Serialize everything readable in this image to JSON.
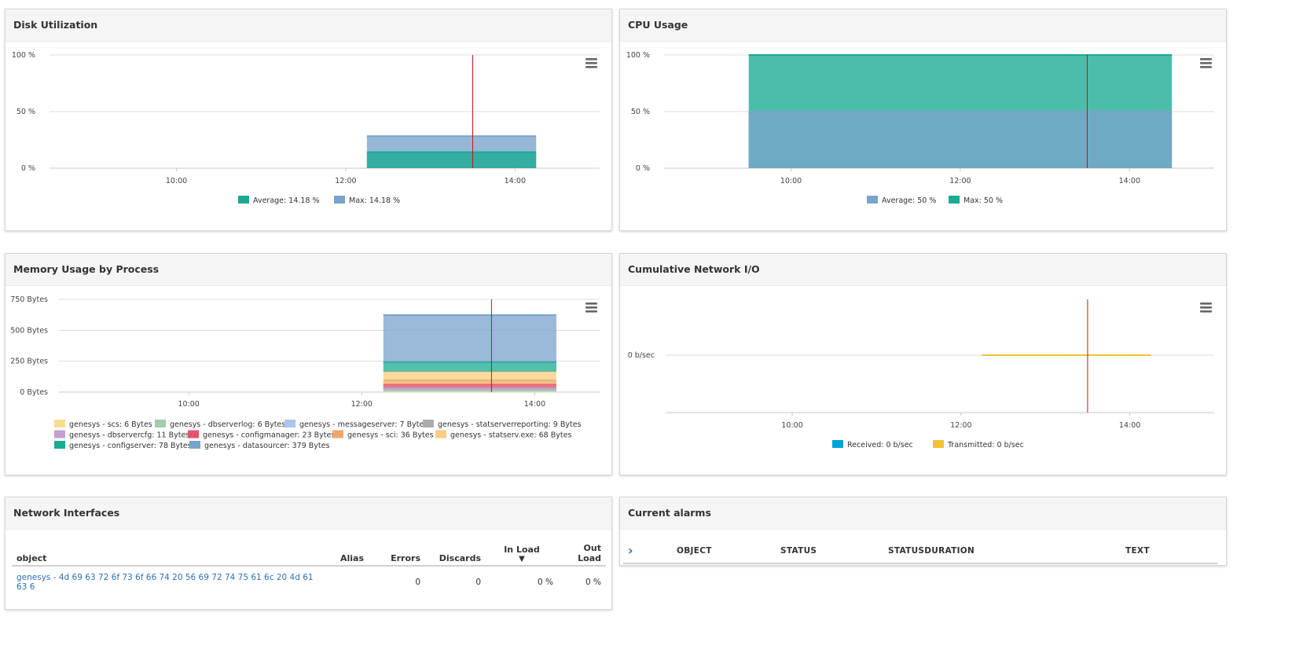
{
  "colors": {
    "teal": "#1aab92",
    "teal_fill": "#3fb8a3",
    "blue_fill": "#96b7d4",
    "blue_line": "#6f96bf",
    "cursor": "#cc1111",
    "grid": "#dcdcdc",
    "cyan": "#00a3d9",
    "yellow": "#f1c232",
    "link": "#2a70b8"
  },
  "panels": {
    "disk": {
      "title": "Disk Utilization"
    },
    "cpu": {
      "title": "CPU Usage"
    },
    "memory": {
      "title": "Memory Usage by Process"
    },
    "network_io": {
      "title": "Cumulative Network I/O"
    },
    "interfaces": {
      "title": "Network Interfaces"
    },
    "alarms": {
      "title": "Current alarms"
    }
  },
  "chart_data": [
    {
      "id": "disk",
      "type": "area",
      "title": "Disk Utilization",
      "x_ticks": [
        "10:00",
        "12:00",
        "14:00"
      ],
      "y_ticks": [
        "0 %",
        "50 %",
        "100 %"
      ],
      "ylim": [
        0,
        100
      ],
      "x_range_hours": [
        8.5,
        15.0
      ],
      "cursor_at": 13.5,
      "series": [
        {
          "name": "Max",
          "legend": "Max: 14.18 %",
          "color": "#7aa3cc",
          "start": 12.25,
          "end": 14.25,
          "value": 28.3
        },
        {
          "name": "Average",
          "legend": "Average: 14.18 %",
          "color": "#1aab92",
          "start": 12.25,
          "end": 14.25,
          "value": 14.18
        }
      ]
    },
    {
      "id": "cpu",
      "type": "area",
      "title": "CPU Usage",
      "x_ticks": [
        "10:00",
        "12:00",
        "14:00"
      ],
      "y_ticks": [
        "0 %",
        "50 %",
        "100 %"
      ],
      "ylim": [
        0,
        100
      ],
      "x_range_hours": [
        8.5,
        15.0
      ],
      "cursor_at": 13.5,
      "series": [
        {
          "name": "Average",
          "legend": "Average: 50 %",
          "color": "#7aa3cc",
          "start": 9.5,
          "end": 14.5,
          "value": 50
        },
        {
          "name": "Max",
          "legend": "Max: 50 %",
          "color": "#1aab92",
          "start": 9.5,
          "end": 14.5,
          "value": 100
        }
      ]
    },
    {
      "id": "memory",
      "type": "area",
      "title": "Memory Usage by Process",
      "x_ticks": [
        "10:00",
        "12:00",
        "14:00"
      ],
      "y_ticks": [
        "0 Bytes",
        "250 Bytes",
        "500 Bytes",
        "750 Bytes"
      ],
      "ylim": [
        0,
        750
      ],
      "x_range_hours": [
        8.5,
        14.75
      ],
      "cursor_at": 13.5,
      "series": [
        {
          "name": "genesys - scs",
          "legend": "genesys - scs: 6 Bytes",
          "color": "#f7dc8e",
          "start": 12.25,
          "end": 14.25,
          "value": 6
        },
        {
          "name": "genesys - dbserverlog",
          "legend": "genesys - dbserverlog: 6 Bytes",
          "color": "#a3ccae",
          "start": 12.25,
          "end": 14.25,
          "value": 6
        },
        {
          "name": "genesys - messageserver",
          "legend": "genesys - messageserver: 7 Bytes",
          "color": "#aac6ee",
          "start": 12.25,
          "end": 14.25,
          "value": 7
        },
        {
          "name": "genesys - statserverreporting",
          "legend": "genesys - statserverreporting: 9 Bytes",
          "color": "#acacac",
          "start": 12.25,
          "end": 14.25,
          "value": 9
        },
        {
          "name": "genesys - dbservercfg",
          "legend": "genesys - dbservercfg: 11 Bytes",
          "color": "#c39fcf",
          "start": 12.25,
          "end": 14.25,
          "value": 11
        },
        {
          "name": "genesys - configmanager",
          "legend": "genesys - configmanager: 23 Bytes",
          "color": "#e8516b",
          "start": 12.25,
          "end": 14.25,
          "value": 23
        },
        {
          "name": "genesys - sci",
          "legend": "genesys - sci: 36 Bytes",
          "color": "#eda76a",
          "start": 12.25,
          "end": 14.25,
          "value": 36
        },
        {
          "name": "genesys - statserv.exe",
          "legend": "genesys - statserv.exe: 68 Bytes",
          "color": "#f9cd82",
          "start": 12.25,
          "end": 14.25,
          "value": 68
        },
        {
          "name": "genesys - configserver",
          "legend": "genesys - configserver: 78 Bytes",
          "color": "#1aab92",
          "start": 12.25,
          "end": 14.25,
          "value": 78
        },
        {
          "name": "genesys - datasourcer",
          "legend": "genesys - datasourcer: 379 Bytes",
          "color": "#7aa3cc",
          "start": 12.25,
          "end": 14.25,
          "value": 379
        }
      ]
    },
    {
      "id": "network_io",
      "type": "line",
      "title": "Cumulative Network I/O",
      "x_ticks": [
        "10:00",
        "12:00",
        "14:00"
      ],
      "y_ticks": [
        "0 b/sec"
      ],
      "x_range_hours": [
        8.5,
        15.0
      ],
      "cursor_at": 13.5,
      "series": [
        {
          "name": "Received",
          "legend": "Received: 0 b/sec",
          "color": "#00a3d9",
          "start": 12.25,
          "end": 14.25,
          "value": 0
        },
        {
          "name": "Transmitted",
          "legend": "Transmitted: 0 b/sec",
          "color": "#f1c232",
          "start": 12.25,
          "end": 14.25,
          "value": 0
        }
      ]
    }
  ],
  "interfaces_table": {
    "columns": [
      "object",
      "Alias",
      "Errors",
      "Discards",
      "In Load",
      "Out Load"
    ],
    "sort_indicator": "▼",
    "rows": [
      {
        "object": "genesys - 4d 69 63 72 6f 73 6f 66 74 20 56 69 72 74 75 61 6c 20 4d 61 63 6",
        "alias": "",
        "errors": "0",
        "discards": "0",
        "in_load": "0 %",
        "out_load": "0 %"
      }
    ]
  },
  "alarms_table": {
    "expand_glyph": "›",
    "columns": [
      "OBJECT",
      "STATUS",
      "STATUSDURATION",
      "TEXT"
    ]
  }
}
